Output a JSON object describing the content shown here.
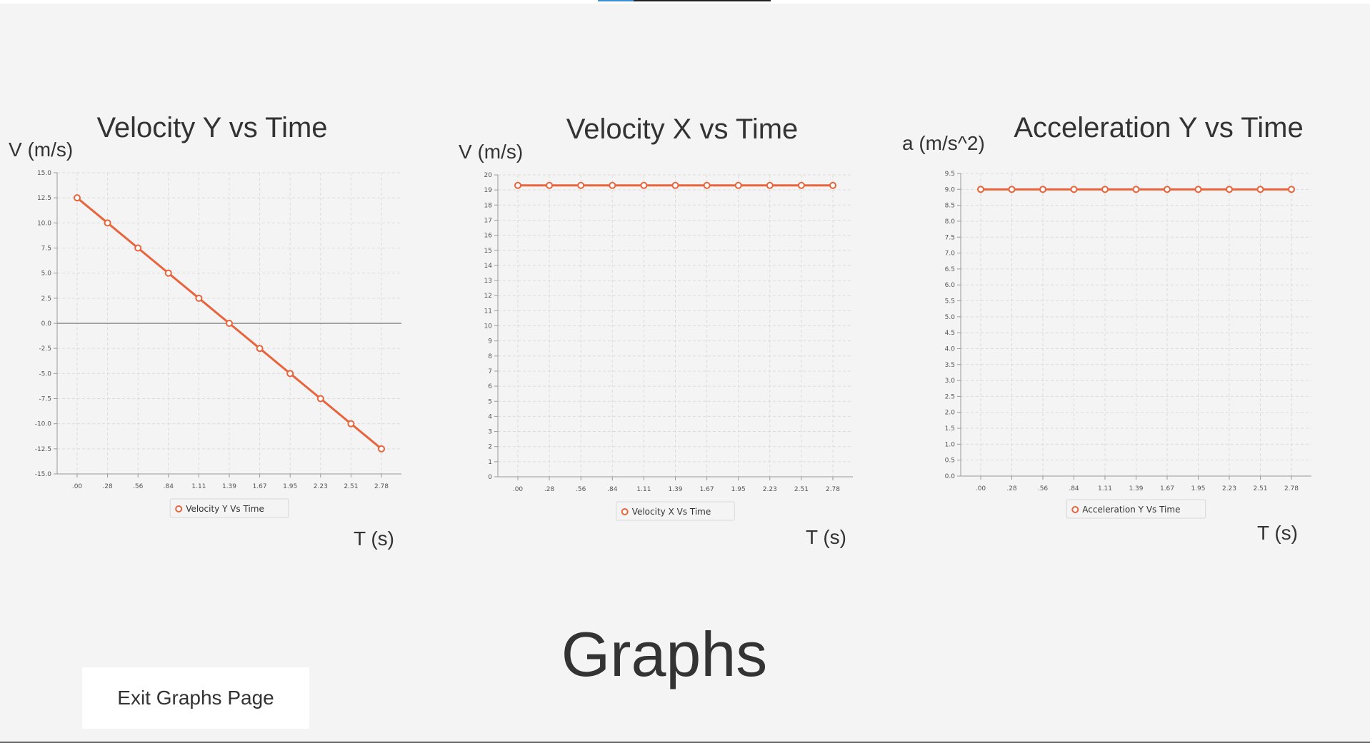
{
  "page": {
    "heading": "Graphs",
    "exit_button_label": "Exit Graphs Page"
  },
  "colors": {
    "series": "#e8643c",
    "grid": "#dcdcdc",
    "axis": "#999999",
    "background": "#f4f4f4"
  },
  "chart_data": [
    {
      "type": "line",
      "title": "Velocity Y vs Time",
      "ylabel": "V (m/s)",
      "xlabel": "T (s)",
      "categories": [
        ".00",
        ".28",
        ".56",
        ".84",
        "1.11",
        "1.39",
        "1.67",
        "1.95",
        "2.23",
        "2.51",
        "2.78"
      ],
      "series": [
        {
          "name": "Velocity Y Vs Time",
          "values": [
            12.5,
            10.0,
            7.5,
            5.0,
            2.5,
            0.0,
            -2.5,
            -5.0,
            -7.5,
            -10.0,
            -12.5
          ]
        }
      ],
      "ylim": [
        -15.0,
        15.0
      ],
      "yticks": [
        "15.0",
        "12.5",
        "10.0",
        "7.5",
        "5.0",
        "2.5",
        "0.0",
        "-2.5",
        "-5.0",
        "-7.5",
        "-10.0",
        "-12.5",
        "-15.0"
      ],
      "grid": true,
      "legend": "bottom"
    },
    {
      "type": "line",
      "title": "Velocity X vs Time",
      "ylabel": "V (m/s)",
      "xlabel": "T (s)",
      "categories": [
        ".00",
        ".28",
        ".56",
        ".84",
        "1.11",
        "1.39",
        "1.67",
        "1.95",
        "2.23",
        "2.51",
        "2.78"
      ],
      "series": [
        {
          "name": "Velocity X Vs Time",
          "values": [
            19.3,
            19.3,
            19.3,
            19.3,
            19.3,
            19.3,
            19.3,
            19.3,
            19.3,
            19.3,
            19.3
          ]
        }
      ],
      "ylim": [
        0,
        20
      ],
      "yticks": [
        "20",
        "19",
        "18",
        "17",
        "16",
        "15",
        "14",
        "13",
        "12",
        "11",
        "10",
        "9",
        "8",
        "7",
        "6",
        "5",
        "4",
        "3",
        "2",
        "1",
        "0"
      ],
      "grid": true,
      "legend": "bottom"
    },
    {
      "type": "line",
      "title": "Acceleration Y vs Time",
      "ylabel": "a (m/s^2)",
      "xlabel": "T (s)",
      "categories": [
        ".00",
        ".28",
        ".56",
        ".84",
        "1.11",
        "1.39",
        "1.67",
        "1.95",
        "2.23",
        "2.51",
        "2.78"
      ],
      "series": [
        {
          "name": "Acceleration Y Vs Time",
          "values": [
            9.0,
            9.0,
            9.0,
            9.0,
            9.0,
            9.0,
            9.0,
            9.0,
            9.0,
            9.0,
            9.0
          ]
        }
      ],
      "ylim": [
        0.0,
        9.5
      ],
      "yticks": [
        "9.5",
        "9.0",
        "8.5",
        "8.0",
        "7.5",
        "7.0",
        "6.5",
        "6.0",
        "5.5",
        "5.0",
        "4.5",
        "4.0",
        "3.5",
        "3.0",
        "2.5",
        "2.0",
        "1.5",
        "1.0",
        "0.5",
        "0.0"
      ],
      "grid": true,
      "legend": "bottom"
    }
  ]
}
